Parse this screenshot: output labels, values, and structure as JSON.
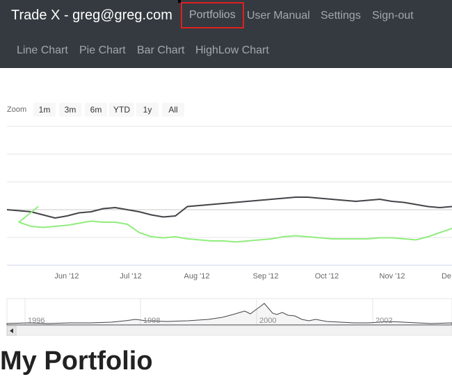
{
  "navbar": {
    "brand": "Trade X - greg@greg.com",
    "links": [
      "Portfolios",
      "User Manual",
      "Settings",
      "Sign-out"
    ],
    "chart_links": [
      "Line Chart",
      "Pie Chart",
      "Bar Chart",
      "HighLow Chart"
    ],
    "active": "Portfolios"
  },
  "zoom": {
    "label": "Zoom",
    "buttons": [
      "1m",
      "3m",
      "6m",
      "YTD",
      "1y",
      "All"
    ]
  },
  "chart_data": {
    "type": "line",
    "x_ticks": [
      "Jun '12",
      "Jul '12",
      "Aug '12",
      "Sep '12",
      "Oct '12",
      "Nov '12",
      "De"
    ],
    "navigator_ticks": [
      "1996",
      "1998",
      "2000",
      "2002"
    ],
    "series": [
      {
        "color": "#434348",
        "values": [
          0.0,
          -0.01,
          -0.02,
          -0.05,
          -0.08,
          -0.06,
          -0.03,
          -0.02,
          0.01,
          0.02,
          0.0,
          -0.02,
          -0.05,
          -0.07,
          -0.06,
          0.03,
          0.04,
          0.05,
          0.06,
          0.07,
          0.08,
          0.09,
          0.1,
          0.11,
          0.12,
          0.12,
          0.11,
          0.1,
          0.09,
          0.08,
          0.09,
          0.1,
          0.08,
          0.07,
          0.05,
          0.03,
          0.02,
          0.03
        ]
      },
      {
        "color": "#90ed7d",
        "values": [
          0.03,
          -0.12,
          -0.16,
          -0.17,
          -0.16,
          -0.15,
          -0.13,
          -0.11,
          -0.12,
          -0.12,
          -0.14,
          -0.22,
          -0.26,
          -0.27,
          -0.26,
          -0.28,
          -0.29,
          -0.3,
          -0.3,
          -0.31,
          -0.3,
          -0.29,
          -0.28,
          -0.26,
          -0.25,
          -0.26,
          -0.27,
          -0.28,
          -0.28,
          -0.28,
          -0.28,
          -0.27,
          -0.27,
          -0.28,
          -0.29,
          -0.26,
          -0.22,
          -0.18
        ]
      }
    ]
  },
  "page": {
    "title": "My Portfolio"
  }
}
